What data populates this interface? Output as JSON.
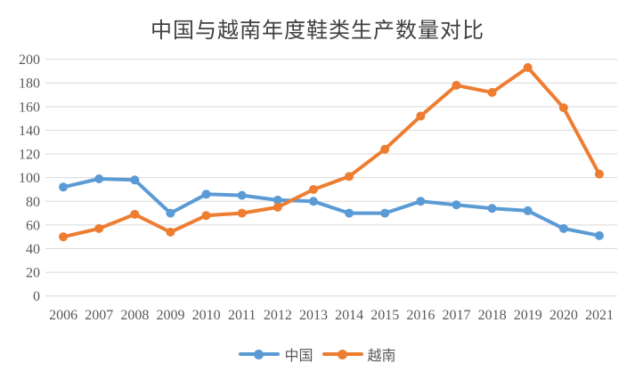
{
  "chart_data": {
    "type": "line",
    "title": "中国与越南年度鞋类生产数量对比",
    "categories": [
      "2006",
      "2007",
      "2008",
      "2009",
      "2010",
      "2011",
      "2012",
      "2013",
      "2014",
      "2015",
      "2016",
      "2017",
      "2018",
      "2019",
      "2020",
      "2021"
    ],
    "series": [
      {
        "name": "中国",
        "color": "#5B9BD5",
        "values": [
          92,
          99,
          98,
          70,
          86,
          85,
          81,
          80,
          70,
          70,
          80,
          77,
          74,
          72,
          57,
          51
        ]
      },
      {
        "name": "越南",
        "color": "#ED7D31",
        "values": [
          50,
          57,
          69,
          54,
          68,
          70,
          75,
          90,
          101,
          124,
          152,
          178,
          172,
          193,
          159,
          103
        ]
      }
    ],
    "xlabel": "",
    "ylabel": "",
    "ylim": [
      0,
      200
    ],
    "ytick_step": 20,
    "yticks": [
      "0",
      "20",
      "40",
      "60",
      "80",
      "100",
      "120",
      "140",
      "160",
      "180",
      "200"
    ],
    "grid": "horizontal",
    "legend_position": "bottom",
    "marker": "circle"
  },
  "style_colors": {
    "gridline": "#D9D9D9",
    "axis_text": "#595959",
    "title_text": "#404040",
    "background": "#FFFFFF"
  }
}
